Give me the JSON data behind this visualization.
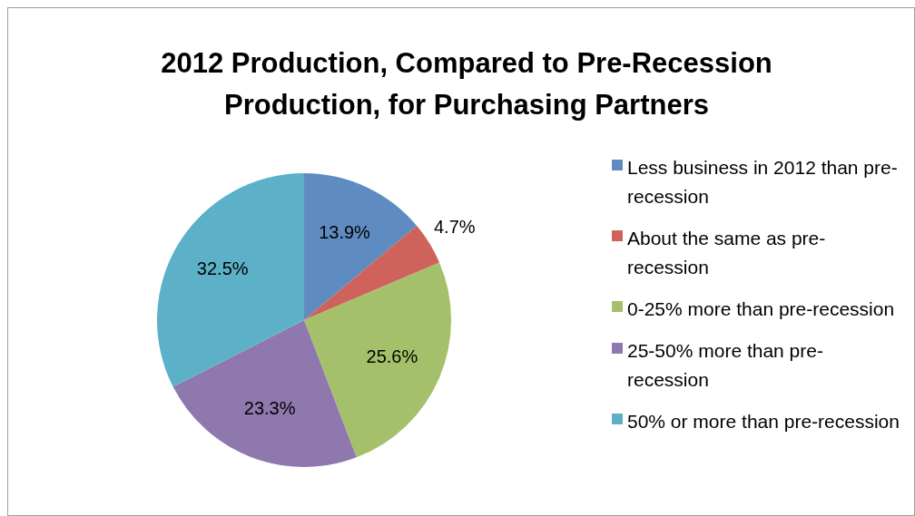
{
  "chart_data": {
    "type": "pie",
    "title": "2012 Production, Compared to Pre-Recession Production, for Purchasing Partners",
    "categories": [
      "Less business in 2012 than pre-recession",
      "About the same as pre-recession",
      "0-25% more than pre-recession",
      "25-50% more than pre-recession",
      "50% or more than pre-recession"
    ],
    "values": [
      13.9,
      4.7,
      25.6,
      23.3,
      32.5
    ],
    "value_labels": [
      "13.9%",
      "4.7%",
      "25.6%",
      "23.3%",
      "32.5%"
    ],
    "colors": [
      "#5f8cc0",
      "#cf625a",
      "#a5c06a",
      "#8f78ad",
      "#5cb1c8"
    ],
    "legend": "right"
  }
}
